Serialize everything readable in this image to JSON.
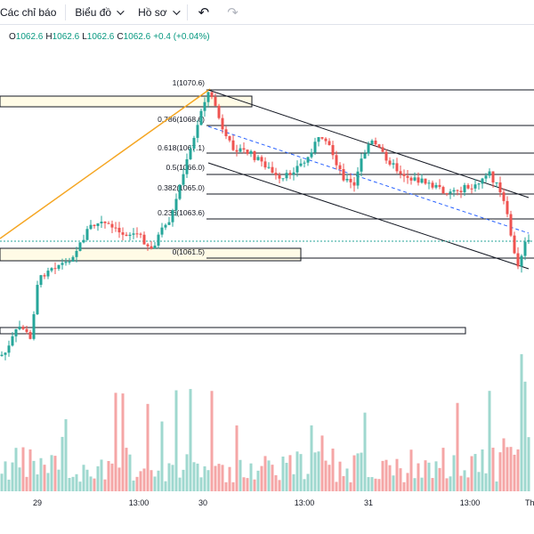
{
  "toolbar": {
    "indicators_label": "Các chỉ báo",
    "chart_label": "Biểu đồ",
    "profile_label": "Hồ sơ",
    "undo_icon": "undo-icon",
    "redo_icon": "redo-icon"
  },
  "ohlc": {
    "o_key": "O",
    "o_val": "1062.6",
    "h_key": "H",
    "h_val": "1062.6",
    "l_key": "L",
    "l_val": "1062.6",
    "c_key": "C",
    "c_val": "1062.6",
    "change": "+0.4 (+0.04%)"
  },
  "colors": {
    "up": "#26a69a",
    "down": "#ef5350",
    "volume_up": "#9fd8cf",
    "volume_down": "#f5a6a6",
    "fib_line": "#131722",
    "trend_line": "#f5a623",
    "box_fill": "#fffbe6",
    "channel_mid": "#2962ff"
  },
  "fib_levels": [
    {
      "ratio": "1",
      "price": "1070.6",
      "label": "1(1070.6)"
    },
    {
      "ratio": "0.786",
      "price": "1068.6",
      "label": "0.786(1068.6)"
    },
    {
      "ratio": "0.618",
      "price": "1067.1",
      "label": "0.618(1067.1)"
    },
    {
      "ratio": "0.5",
      "price": "1066.0",
      "label": "0.5(1066.0)"
    },
    {
      "ratio": "0.382",
      "price": "1065.0",
      "label": "0.382(1065.0)"
    },
    {
      "ratio": "0.236",
      "price": "1063.6",
      "label": "0.236(1063.6)"
    },
    {
      "ratio": "0",
      "price": "1061.5",
      "label": "0(1061.5)"
    }
  ],
  "time_axis": [
    "29",
    "13:00",
    "30",
    "13:00",
    "31",
    "13:00",
    "Th"
  ]
}
